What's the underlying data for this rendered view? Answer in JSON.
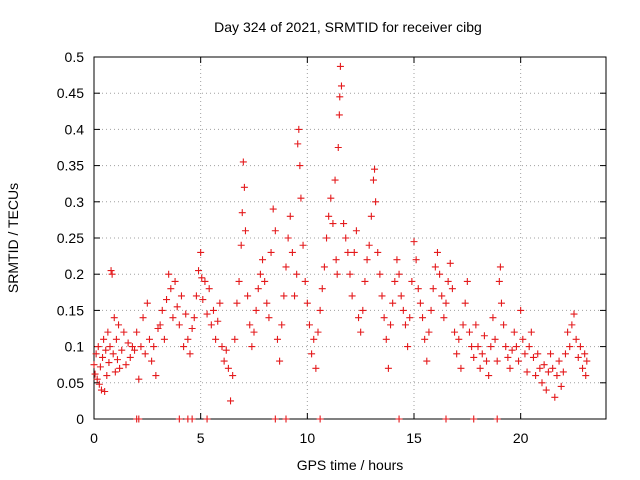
{
  "chart_data": {
    "type": "scatter",
    "title": "Day 324 of 2021, SRMTID for receiver cibg",
    "xlabel": "GPS time / hours",
    "ylabel": "SRMTID / TECUs",
    "xlim": [
      0,
      24
    ],
    "ylim": [
      0,
      0.5
    ],
    "xticks": [
      0,
      5,
      10,
      15,
      20
    ],
    "xtick_labels": [
      "0",
      "5",
      "10",
      "15",
      "20"
    ],
    "yticks": [
      0,
      0.05,
      0.1,
      0.15,
      0.2,
      0.25,
      0.3,
      0.35,
      0.4,
      0.45,
      0.5
    ],
    "ytick_labels": [
      "0",
      "0.05",
      "0.1",
      "0.15",
      "0.2",
      "0.25",
      "0.3",
      "0.35",
      "0.4",
      "0.45",
      "0.5"
    ],
    "grid": true,
    "marker": "+",
    "color": "#e41a1c",
    "series": [
      {
        "name": "SRMTID",
        "points": [
          [
            0.0,
            0.075
          ],
          [
            0.05,
            0.062
          ],
          [
            0.1,
            0.09
          ],
          [
            0.15,
            0.055
          ],
          [
            0.2,
            0.1
          ],
          [
            0.25,
            0.048
          ],
          [
            0.3,
            0.072
          ],
          [
            0.35,
            0.04
          ],
          [
            0.4,
            0.085
          ],
          [
            0.45,
            0.11
          ],
          [
            0.5,
            0.038
          ],
          [
            0.55,
            0.095
          ],
          [
            0.6,
            0.06
          ],
          [
            0.65,
            0.12
          ],
          [
            0.7,
            0.078
          ],
          [
            0.75,
            0.1
          ],
          [
            0.8,
            0.205
          ],
          [
            0.85,
            0.2
          ],
          [
            0.9,
            0.09
          ],
          [
            0.95,
            0.14
          ],
          [
            1.0,
            0.065
          ],
          [
            1.05,
            0.11
          ],
          [
            1.1,
            0.082
          ],
          [
            1.15,
            0.13
          ],
          [
            1.2,
            0.07
          ],
          [
            1.3,
            0.095
          ],
          [
            1.4,
            0.12
          ],
          [
            1.5,
            0.075
          ],
          [
            1.6,
            0.105
          ],
          [
            1.7,
            0.085
          ],
          [
            1.8,
            0.1
          ],
          [
            1.9,
            0.095
          ],
          [
            2.0,
            0.12
          ],
          [
            2.1,
            0.055
          ],
          [
            2.2,
            0.1
          ],
          [
            2.3,
            0.14
          ],
          [
            2.4,
            0.09
          ],
          [
            2.5,
            0.16
          ],
          [
            2.6,
            0.11
          ],
          [
            2.7,
            0.08
          ],
          [
            2.8,
            0.1
          ],
          [
            2.9,
            0.06
          ],
          [
            3.0,
            0.125
          ],
          [
            3.1,
            0.13
          ],
          [
            3.2,
            0.15
          ],
          [
            3.3,
            0.11
          ],
          [
            3.4,
            0.165
          ],
          [
            3.5,
            0.2
          ],
          [
            3.6,
            0.18
          ],
          [
            3.7,
            0.14
          ],
          [
            3.8,
            0.19
          ],
          [
            3.9,
            0.155
          ],
          [
            4.0,
            0.13
          ],
          [
            4.1,
            0.17
          ],
          [
            4.2,
            0.1
          ],
          [
            4.3,
            0.145
          ],
          [
            4.4,
            0.11
          ],
          [
            4.5,
            0.09
          ],
          [
            4.6,
            0.125
          ],
          [
            4.7,
            0.14
          ],
          [
            4.8,
            0.17
          ],
          [
            4.9,
            0.205
          ],
          [
            5.0,
            0.23
          ],
          [
            5.05,
            0.195
          ],
          [
            5.1,
            0.165
          ],
          [
            5.2,
            0.19
          ],
          [
            5.3,
            0.145
          ],
          [
            5.4,
            0.18
          ],
          [
            5.5,
            0.13
          ],
          [
            5.6,
            0.15
          ],
          [
            5.7,
            0.11
          ],
          [
            5.8,
            0.135
          ],
          [
            5.9,
            0.16
          ],
          [
            6.0,
            0.1
          ],
          [
            6.1,
            0.08
          ],
          [
            6.2,
            0.095
          ],
          [
            6.3,
            0.07
          ],
          [
            6.4,
            0.025
          ],
          [
            6.5,
            0.06
          ],
          [
            6.6,
            0.11
          ],
          [
            6.7,
            0.16
          ],
          [
            6.8,
            0.19
          ],
          [
            6.9,
            0.24
          ],
          [
            6.95,
            0.285
          ],
          [
            7.0,
            0.355
          ],
          [
            7.05,
            0.32
          ],
          [
            7.1,
            0.26
          ],
          [
            7.2,
            0.17
          ],
          [
            7.3,
            0.13
          ],
          [
            7.4,
            0.1
          ],
          [
            7.5,
            0.12
          ],
          [
            7.6,
            0.15
          ],
          [
            7.7,
            0.18
          ],
          [
            7.8,
            0.2
          ],
          [
            7.9,
            0.22
          ],
          [
            8.0,
            0.19
          ],
          [
            8.1,
            0.16
          ],
          [
            8.2,
            0.14
          ],
          [
            8.3,
            0.23
          ],
          [
            8.4,
            0.29
          ],
          [
            8.5,
            0.26
          ],
          [
            8.6,
            0.11
          ],
          [
            8.7,
            0.08
          ],
          [
            8.8,
            0.13
          ],
          [
            8.9,
            0.17
          ],
          [
            9.0,
            0.21
          ],
          [
            9.1,
            0.25
          ],
          [
            9.2,
            0.28
          ],
          [
            9.3,
            0.23
          ],
          [
            9.4,
            0.17
          ],
          [
            9.5,
            0.2
          ],
          [
            9.55,
            0.38
          ],
          [
            9.6,
            0.4
          ],
          [
            9.65,
            0.35
          ],
          [
            9.7,
            0.305
          ],
          [
            9.8,
            0.24
          ],
          [
            9.9,
            0.19
          ],
          [
            10.0,
            0.16
          ],
          [
            10.1,
            0.13
          ],
          [
            10.2,
            0.09
          ],
          [
            10.3,
            0.11
          ],
          [
            10.4,
            0.07
          ],
          [
            10.5,
            0.12
          ],
          [
            10.6,
            0.15
          ],
          [
            10.7,
            0.18
          ],
          [
            10.8,
            0.21
          ],
          [
            10.9,
            0.25
          ],
          [
            11.0,
            0.28
          ],
          [
            11.1,
            0.305
          ],
          [
            11.2,
            0.27
          ],
          [
            11.3,
            0.33
          ],
          [
            11.35,
            0.22
          ],
          [
            11.4,
            0.2
          ],
          [
            11.45,
            0.375
          ],
          [
            11.5,
            0.42
          ],
          [
            11.52,
            0.445
          ],
          [
            11.55,
            0.487
          ],
          [
            11.6,
            0.46
          ],
          [
            11.7,
            0.27
          ],
          [
            11.8,
            0.25
          ],
          [
            11.9,
            0.23
          ],
          [
            12.0,
            0.2
          ],
          [
            12.1,
            0.17
          ],
          [
            12.2,
            0.23
          ],
          [
            12.3,
            0.26
          ],
          [
            12.4,
            0.14
          ],
          [
            12.5,
            0.12
          ],
          [
            12.6,
            0.15
          ],
          [
            12.7,
            0.19
          ],
          [
            12.8,
            0.22
          ],
          [
            12.9,
            0.24
          ],
          [
            13.0,
            0.28
          ],
          [
            13.1,
            0.33
          ],
          [
            13.15,
            0.345
          ],
          [
            13.2,
            0.3
          ],
          [
            13.3,
            0.23
          ],
          [
            13.4,
            0.2
          ],
          [
            13.5,
            0.17
          ],
          [
            13.6,
            0.14
          ],
          [
            13.7,
            0.11
          ],
          [
            13.8,
            0.07
          ],
          [
            13.9,
            0.13
          ],
          [
            14.0,
            0.16
          ],
          [
            14.1,
            0.19
          ],
          [
            14.2,
            0.22
          ],
          [
            14.3,
            0.2
          ],
          [
            14.4,
            0.17
          ],
          [
            14.5,
            0.15
          ],
          [
            14.6,
            0.13
          ],
          [
            14.7,
            0.1
          ],
          [
            14.8,
            0.14
          ],
          [
            14.9,
            0.19
          ],
          [
            15.0,
            0.245
          ],
          [
            15.1,
            0.22
          ],
          [
            15.2,
            0.18
          ],
          [
            15.3,
            0.16
          ],
          [
            15.4,
            0.14
          ],
          [
            15.5,
            0.11
          ],
          [
            15.6,
            0.08
          ],
          [
            15.7,
            0.12
          ],
          [
            15.8,
            0.15
          ],
          [
            15.9,
            0.18
          ],
          [
            16.0,
            0.21
          ],
          [
            16.1,
            0.23
          ],
          [
            16.2,
            0.2
          ],
          [
            16.3,
            0.17
          ],
          [
            16.4,
            0.14
          ],
          [
            16.5,
            0.16
          ],
          [
            16.6,
            0.19
          ],
          [
            16.7,
            0.215
          ],
          [
            16.8,
            0.18
          ],
          [
            16.9,
            0.12
          ],
          [
            17.0,
            0.09
          ],
          [
            17.1,
            0.11
          ],
          [
            17.2,
            0.07
          ],
          [
            17.3,
            0.13
          ],
          [
            17.4,
            0.16
          ],
          [
            17.5,
            0.19
          ],
          [
            17.6,
            0.12
          ],
          [
            17.7,
            0.1
          ],
          [
            17.8,
            0.085
          ],
          [
            17.9,
            0.13
          ],
          [
            18.0,
            0.1
          ],
          [
            18.1,
            0.07
          ],
          [
            18.2,
            0.09
          ],
          [
            18.3,
            0.115
          ],
          [
            18.4,
            0.08
          ],
          [
            18.5,
            0.06
          ],
          [
            18.6,
            0.1
          ],
          [
            18.7,
            0.14
          ],
          [
            18.8,
            0.11
          ],
          [
            18.9,
            0.08
          ],
          [
            19.0,
            0.19
          ],
          [
            19.05,
            0.21
          ],
          [
            19.1,
            0.16
          ],
          [
            19.2,
            0.13
          ],
          [
            19.3,
            0.1
          ],
          [
            19.4,
            0.085
          ],
          [
            19.5,
            0.07
          ],
          [
            19.6,
            0.095
          ],
          [
            19.7,
            0.12
          ],
          [
            19.8,
            0.1
          ],
          [
            19.9,
            0.08
          ],
          [
            20.0,
            0.15
          ],
          [
            20.1,
            0.11
          ],
          [
            20.2,
            0.09
          ],
          [
            20.3,
            0.065
          ],
          [
            20.4,
            0.1
          ],
          [
            20.5,
            0.12
          ],
          [
            20.6,
            0.085
          ],
          [
            20.7,
            0.06
          ],
          [
            20.8,
            0.09
          ],
          [
            20.9,
            0.07
          ],
          [
            21.0,
            0.05
          ],
          [
            21.1,
            0.075
          ],
          [
            21.2,
            0.04
          ],
          [
            21.3,
            0.065
          ],
          [
            21.4,
            0.09
          ],
          [
            21.5,
            0.07
          ],
          [
            21.6,
            0.03
          ],
          [
            21.7,
            0.06
          ],
          [
            21.8,
            0.08
          ],
          [
            21.9,
            0.045
          ],
          [
            22.0,
            0.065
          ],
          [
            22.1,
            0.09
          ],
          [
            22.2,
            0.12
          ],
          [
            22.3,
            0.1
          ],
          [
            22.4,
            0.13
          ],
          [
            22.5,
            0.145
          ],
          [
            22.6,
            0.11
          ],
          [
            22.7,
            0.085
          ],
          [
            22.8,
            0.1
          ],
          [
            22.9,
            0.07
          ],
          [
            23.0,
            0.09
          ],
          [
            23.05,
            0.06
          ],
          [
            23.1,
            0.08
          ]
        ],
        "zero_points": [
          2.0,
          2.1,
          4.0,
          4.4,
          4.6,
          5.3,
          8.5,
          9.0,
          10.6,
          14.3,
          16.5,
          17.8,
          18.9
        ]
      }
    ]
  }
}
